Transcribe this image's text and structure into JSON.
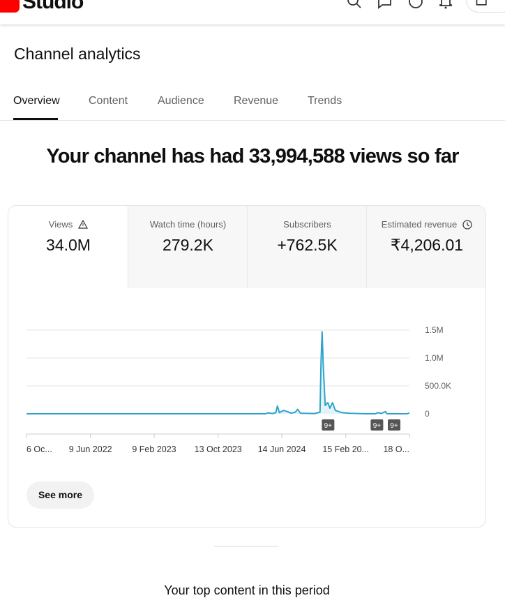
{
  "header": {
    "logo_text": "Studio",
    "icons": [
      "search-icon",
      "feedback-icon",
      "help-icon",
      "notifications-icon",
      "create-icon"
    ]
  },
  "page_title": "Channel analytics",
  "tabs": [
    {
      "label": "Overview",
      "active": true
    },
    {
      "label": "Content"
    },
    {
      "label": "Audience"
    },
    {
      "label": "Revenue"
    },
    {
      "label": "Trends"
    }
  ],
  "headline": "Your channel has had 33,994,588 views so far",
  "metrics": [
    {
      "label": "Views",
      "value": "34.0M",
      "icon": "warning-icon",
      "selected": true
    },
    {
      "label": "Watch time (hours)",
      "value": "279.2K"
    },
    {
      "label": "Subscribers",
      "value": "+762.5K"
    },
    {
      "label": "Estimated revenue",
      "value": "₹4,206.01",
      "icon": "clock-icon"
    }
  ],
  "see_more": "See more",
  "top_content": "Your top content in this period",
  "colors": {
    "line": "#2ea3cc",
    "fill": "#e4f3f9",
    "accent": "#ff0000"
  },
  "chart_data": {
    "type": "area",
    "y_ticks": [
      "1.5M",
      "1.0M",
      "500.0K",
      "0"
    ],
    "ylim": [
      0,
      1500000
    ],
    "x_range": [
      "2021-10-06",
      "2025-10-18"
    ],
    "x_ticks": [
      {
        "date": "2021-10-06",
        "label": "6 Oc..."
      },
      {
        "date": "2022-06-09",
        "label": "9 Jun 2022"
      },
      {
        "date": "2023-02-09",
        "label": "9 Feb 2023"
      },
      {
        "date": "2023-10-13",
        "label": "13 Oct 2023"
      },
      {
        "date": "2024-06-14",
        "label": "14 Jun 2024"
      },
      {
        "date": "2025-02-15",
        "label": "15 Feb 20..."
      },
      {
        "date": "2025-10-18",
        "label": "18 O..."
      }
    ],
    "grid": true,
    "points": [
      [
        "2021-10-06",
        0
      ],
      [
        "2024-04-12",
        0
      ],
      [
        "2024-04-22",
        15000
      ],
      [
        "2024-05-10",
        5000
      ],
      [
        "2024-05-22",
        20000
      ],
      [
        "2024-05-28",
        140000
      ],
      [
        "2024-06-05",
        20000
      ],
      [
        "2024-06-20",
        60000
      ],
      [
        "2024-07-05",
        40000
      ],
      [
        "2024-07-20",
        10000
      ],
      [
        "2024-08-05",
        30000
      ],
      [
        "2024-08-14",
        80000
      ],
      [
        "2024-08-25",
        10000
      ],
      [
        "2024-10-20",
        5000
      ],
      [
        "2024-11-08",
        30000
      ],
      [
        "2024-11-12",
        950000
      ],
      [
        "2024-11-16",
        1470000
      ],
      [
        "2024-11-20",
        900000
      ],
      [
        "2024-11-28",
        150000
      ],
      [
        "2024-12-08",
        200000
      ],
      [
        "2024-12-16",
        100000
      ],
      [
        "2024-12-26",
        200000
      ],
      [
        "2025-01-06",
        60000
      ],
      [
        "2025-02-01",
        20000
      ],
      [
        "2025-03-01",
        10000
      ],
      [
        "2025-05-01",
        0
      ],
      [
        "2025-06-10",
        0
      ],
      [
        "2025-06-18",
        20000
      ],
      [
        "2025-07-01",
        5000
      ],
      [
        "2025-07-18",
        40000
      ],
      [
        "2025-07-24",
        0
      ],
      [
        "2025-10-08",
        0
      ],
      [
        "2025-10-18",
        15000
      ]
    ],
    "markers": [
      {
        "date": "2024-12-09",
        "label": "9+"
      },
      {
        "date": "2025-06-15",
        "label": "9+"
      },
      {
        "date": "2025-08-20",
        "label": "9+"
      }
    ]
  }
}
